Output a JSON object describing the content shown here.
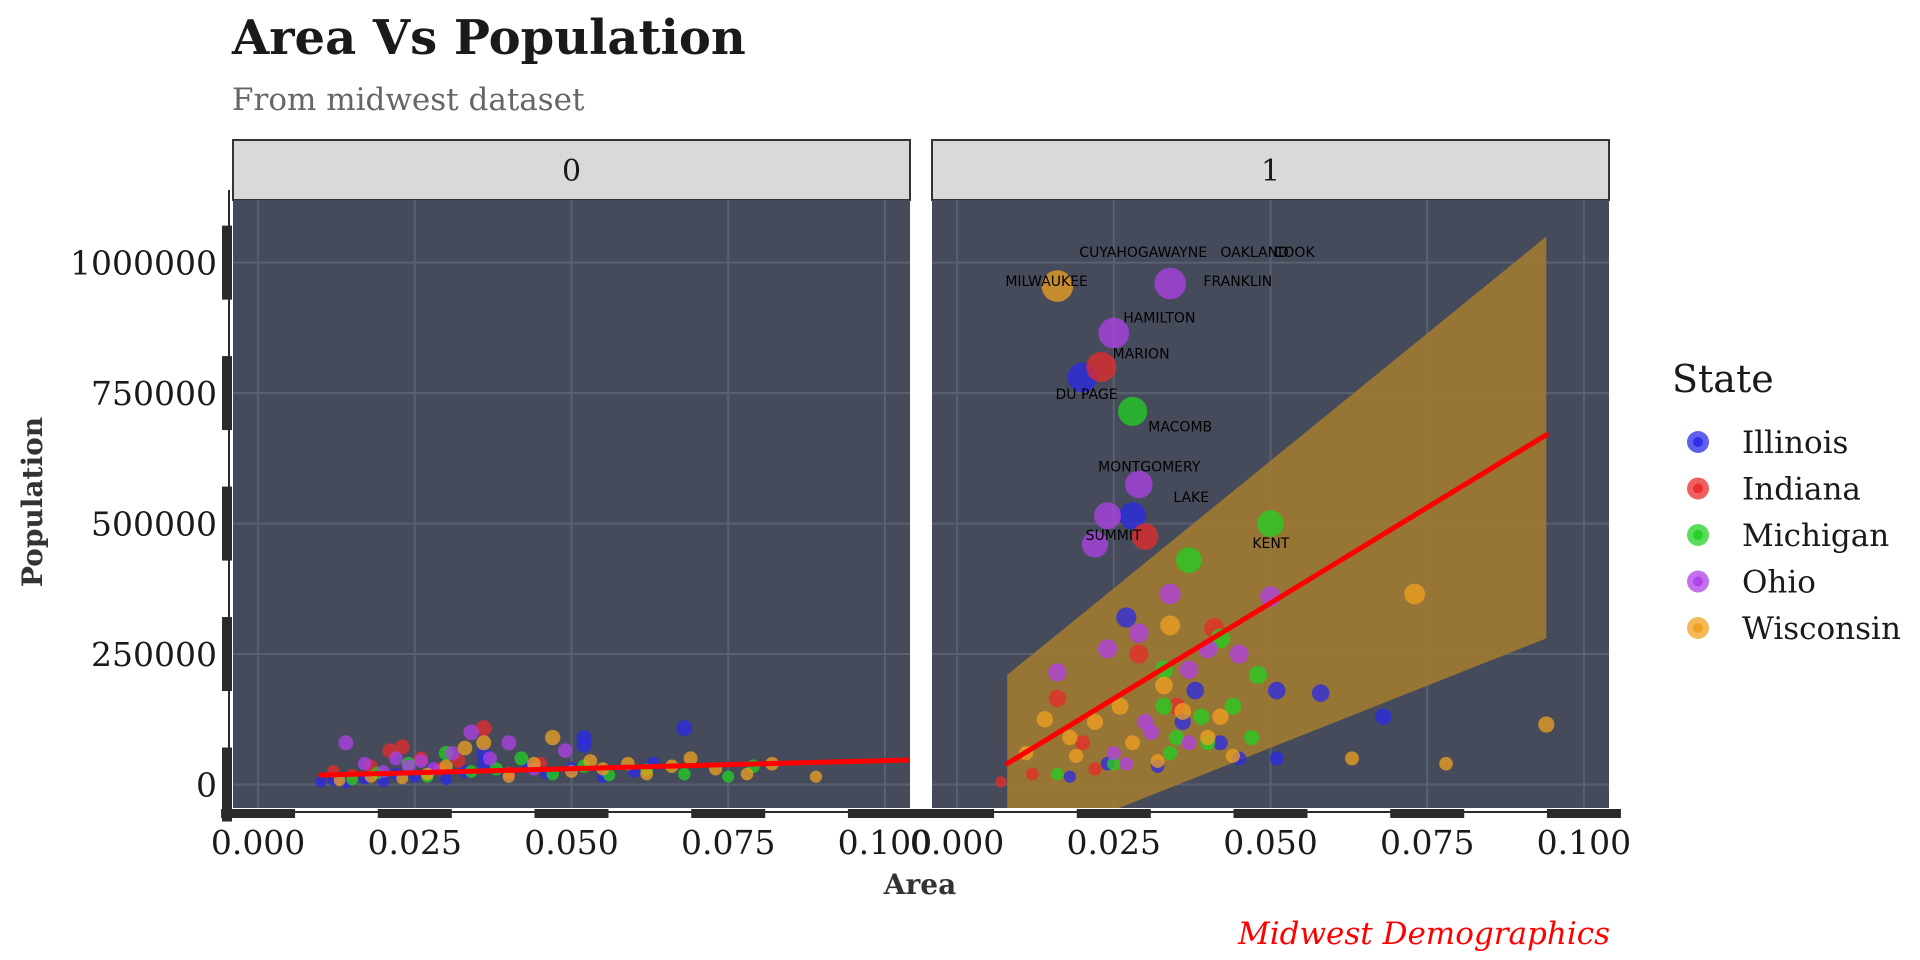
{
  "chart_data": {
    "type": "scatter",
    "title": "Area Vs Population",
    "subtitle": "From midwest dataset",
    "caption": "Midwest Demographics",
    "xlabel": "Area",
    "ylabel": "Population",
    "xlim": [
      -0.004,
      0.104
    ],
    "ylim": [
      -45000,
      1120000
    ],
    "x_ticks": [
      0.0,
      0.025,
      0.05,
      0.075,
      0.1
    ],
    "x_tick_labels": [
      "0.000",
      "0.025",
      "0.050",
      "0.075",
      "0.100"
    ],
    "y_ticks": [
      0,
      250000,
      500000,
      750000,
      1000000
    ],
    "y_tick_labels": [
      "0",
      "250000",
      "500000",
      "750000",
      "1000000"
    ],
    "grid": true,
    "legend": {
      "title": "State",
      "position": "right"
    },
    "colors": {
      "panel_bg": "#454b5b",
      "grid": "#5a6070",
      "strip_bg": "#d9d9d9",
      "fit": "#ff0000",
      "ribbon": "#a07a30",
      "caption": "#ff0000"
    },
    "series": [
      {
        "name": "Illinois",
        "color": "#2a2ae8"
      },
      {
        "name": "Indiana",
        "color": "#e82a2a"
      },
      {
        "name": "Michigan",
        "color": "#22d022"
      },
      {
        "name": "Ohio",
        "color": "#b040e8"
      },
      {
        "name": "Wisconsin",
        "color": "#f0a020"
      }
    ],
    "panels": [
      {
        "label": "0",
        "fit": {
          "x": [
            0.01,
            0.104
          ],
          "y": [
            18000,
            47000
          ]
        },
        "points": [
          [
            0.01,
            5000,
            0
          ],
          [
            0.012,
            9000,
            0
          ],
          [
            0.014,
            4000,
            0
          ],
          [
            0.017,
            12000,
            0
          ],
          [
            0.02,
            6000,
            0
          ],
          [
            0.022,
            20000,
            0
          ],
          [
            0.025,
            15000,
            0
          ],
          [
            0.028,
            30000,
            0
          ],
          [
            0.03,
            10000,
            0
          ],
          [
            0.033,
            25000,
            0
          ],
          [
            0.036,
            40000,
            0
          ],
          [
            0.04,
            18000,
            0
          ],
          [
            0.043,
            35000,
            0
          ],
          [
            0.046,
            22000,
            0
          ],
          [
            0.05,
            30000,
            0
          ],
          [
            0.052,
            90000,
            0
          ],
          [
            0.055,
            15000,
            0
          ],
          [
            0.06,
            25000,
            0
          ],
          [
            0.063,
            40000,
            0
          ],
          [
            0.068,
            108000,
            0
          ],
          [
            0.052,
            75000,
            0
          ],
          [
            0.036,
            60000,
            0
          ],
          [
            0.012,
            25000,
            1
          ],
          [
            0.015,
            18000,
            1
          ],
          [
            0.018,
            35000,
            1
          ],
          [
            0.021,
            65000,
            1
          ],
          [
            0.023,
            72000,
            1
          ],
          [
            0.026,
            50000,
            1
          ],
          [
            0.029,
            30000,
            1
          ],
          [
            0.032,
            45000,
            1
          ],
          [
            0.036,
            108000,
            1
          ],
          [
            0.04,
            22000,
            1
          ],
          [
            0.045,
            40000,
            1
          ],
          [
            0.015,
            10000,
            2
          ],
          [
            0.019,
            22000,
            2
          ],
          [
            0.024,
            40000,
            2
          ],
          [
            0.027,
            15000,
            2
          ],
          [
            0.03,
            60000,
            2
          ],
          [
            0.034,
            25000,
            2
          ],
          [
            0.038,
            30000,
            2
          ],
          [
            0.042,
            50000,
            2
          ],
          [
            0.047,
            20000,
            2
          ],
          [
            0.052,
            35000,
            2
          ],
          [
            0.056,
            18000,
            2
          ],
          [
            0.062,
            28000,
            2
          ],
          [
            0.068,
            20000,
            2
          ],
          [
            0.075,
            15000,
            2
          ],
          [
            0.079,
            35000,
            2
          ],
          [
            0.014,
            80000,
            3
          ],
          [
            0.017,
            40000,
            3
          ],
          [
            0.02,
            25000,
            3
          ],
          [
            0.022,
            50000,
            3
          ],
          [
            0.024,
            35000,
            3
          ],
          [
            0.026,
            45000,
            3
          ],
          [
            0.028,
            30000,
            3
          ],
          [
            0.031,
            60000,
            3
          ],
          [
            0.034,
            100000,
            3
          ],
          [
            0.037,
            50000,
            3
          ],
          [
            0.04,
            80000,
            3
          ],
          [
            0.044,
            30000,
            3
          ],
          [
            0.049,
            65000,
            3
          ],
          [
            0.013,
            8000,
            4
          ],
          [
            0.018,
            15000,
            4
          ],
          [
            0.023,
            12000,
            4
          ],
          [
            0.027,
            20000,
            4
          ],
          [
            0.03,
            35000,
            4
          ],
          [
            0.033,
            70000,
            4
          ],
          [
            0.036,
            80000,
            4
          ],
          [
            0.04,
            15000,
            4
          ],
          [
            0.044,
            40000,
            4
          ],
          [
            0.047,
            90000,
            4
          ],
          [
            0.05,
            25000,
            4
          ],
          [
            0.053,
            45000,
            4
          ],
          [
            0.055,
            30000,
            4
          ],
          [
            0.059,
            40000,
            4
          ],
          [
            0.062,
            20000,
            4
          ],
          [
            0.066,
            35000,
            4
          ],
          [
            0.069,
            50000,
            4
          ],
          [
            0.073,
            30000,
            4
          ],
          [
            0.078,
            20000,
            4
          ],
          [
            0.082,
            40000,
            4
          ],
          [
            0.089,
            15000,
            4
          ]
        ]
      },
      {
        "label": "1",
        "fit": {
          "x": [
            0.008,
            0.094
          ],
          "y": [
            40000,
            670000
          ]
        },
        "ribbon": {
          "x": [
            0.008,
            0.094
          ],
          "upper": [
            210000,
            1050000
          ],
          "lower": [
            -130000,
            280000
          ]
        },
        "points": [
          [
            0.02,
            780000,
            0
          ],
          [
            0.028,
            515000,
            0
          ],
          [
            0.027,
            320000,
            0
          ],
          [
            0.038,
            180000,
            0
          ],
          [
            0.045,
            50000,
            0
          ],
          [
            0.051,
            180000,
            0
          ],
          [
            0.058,
            175000,
            0
          ],
          [
            0.068,
            130000,
            0
          ],
          [
            0.032,
            35000,
            0
          ],
          [
            0.036,
            120000,
            0
          ],
          [
            0.024,
            40000,
            0
          ],
          [
            0.042,
            80000,
            0
          ],
          [
            0.051,
            50000,
            0
          ],
          [
            0.018,
            15000,
            0
          ],
          [
            0.023,
            800000,
            1
          ],
          [
            0.03,
            475000,
            1
          ],
          [
            0.016,
            165000,
            1
          ],
          [
            0.022,
            30000,
            1
          ],
          [
            0.029,
            250000,
            1
          ],
          [
            0.041,
            300000,
            1
          ],
          [
            0.035,
            150000,
            1
          ],
          [
            0.02,
            80000,
            1
          ],
          [
            0.007,
            5000,
            1
          ],
          [
            0.012,
            20000,
            1
          ],
          [
            0.028,
            715000,
            2
          ],
          [
            0.05,
            500000,
            2
          ],
          [
            0.037,
            430000,
            2
          ],
          [
            0.048,
            210000,
            2
          ],
          [
            0.042,
            280000,
            2
          ],
          [
            0.039,
            130000,
            2
          ],
          [
            0.033,
            150000,
            2
          ],
          [
            0.035,
            90000,
            2
          ],
          [
            0.044,
            150000,
            2
          ],
          [
            0.034,
            60000,
            2
          ],
          [
            0.047,
            90000,
            2
          ],
          [
            0.025,
            40000,
            2
          ],
          [
            0.033,
            220000,
            2
          ],
          [
            0.04,
            80000,
            2
          ],
          [
            0.016,
            20000,
            2
          ],
          [
            0.025,
            865000,
            3
          ],
          [
            0.034,
            960000,
            3
          ],
          [
            0.029,
            575000,
            3
          ],
          [
            0.024,
            515000,
            3
          ],
          [
            0.022,
            460000,
            3
          ],
          [
            0.034,
            365000,
            3
          ],
          [
            0.05,
            360000,
            3
          ],
          [
            0.029,
            290000,
            3
          ],
          [
            0.024,
            260000,
            3
          ],
          [
            0.04,
            260000,
            3
          ],
          [
            0.045,
            250000,
            3
          ],
          [
            0.016,
            215000,
            3
          ],
          [
            0.031,
            100000,
            3
          ],
          [
            0.025,
            60000,
            3
          ],
          [
            0.027,
            40000,
            3
          ],
          [
            0.037,
            220000,
            3
          ],
          [
            0.03,
            120000,
            3
          ],
          [
            0.037,
            80000,
            3
          ],
          [
            0.016,
            955000,
            4
          ],
          [
            0.073,
            365000,
            4
          ],
          [
            0.034,
            305000,
            4
          ],
          [
            0.033,
            190000,
            4
          ],
          [
            0.022,
            120000,
            4
          ],
          [
            0.018,
            90000,
            4
          ],
          [
            0.014,
            125000,
            4
          ],
          [
            0.011,
            60000,
            4
          ],
          [
            0.036,
            140000,
            4
          ],
          [
            0.042,
            130000,
            4
          ],
          [
            0.063,
            50000,
            4
          ],
          [
            0.078,
            40000,
            4
          ],
          [
            0.094,
            115000,
            4
          ],
          [
            0.044,
            55000,
            4
          ],
          [
            0.028,
            80000,
            4
          ],
          [
            0.032,
            45000,
            4
          ],
          [
            0.04,
            90000,
            4
          ],
          [
            0.019,
            55000,
            4
          ],
          [
            0.026,
            150000,
            4
          ]
        ],
        "labels": [
          {
            "text": "CUYAHOGA",
            "x": 0.0195,
            "y": 1020000
          },
          {
            "text": "WAYNE",
            "x": 0.032,
            "y": 1020000
          },
          {
            "text": "OAKLAND",
            "x": 0.042,
            "y": 1020000
          },
          {
            "text": "COOK",
            "x": 0.0505,
            "y": 1020000
          },
          {
            "text": "MILWAUKEE",
            "x": 0.0077,
            "y": 965000
          },
          {
            "text": "FRANKLIN",
            "x": 0.0393,
            "y": 965000
          },
          {
            "text": "HAMILTON",
            "x": 0.0265,
            "y": 895000
          },
          {
            "text": "MARION",
            "x": 0.0248,
            "y": 826000
          },
          {
            "text": "DU PAGE",
            "x": 0.0157,
            "y": 748000
          },
          {
            "text": "MACOMB",
            "x": 0.0305,
            "y": 686000
          },
          {
            "text": "MONTGOMERY",
            "x": 0.0225,
            "y": 609000
          },
          {
            "text": "LAKE",
            "x": 0.0345,
            "y": 551000
          },
          {
            "text": "SUMMIT",
            "x": 0.0205,
            "y": 478000
          },
          {
            "text": "KENT",
            "x": 0.0471,
            "y": 463000
          }
        ]
      }
    ]
  }
}
